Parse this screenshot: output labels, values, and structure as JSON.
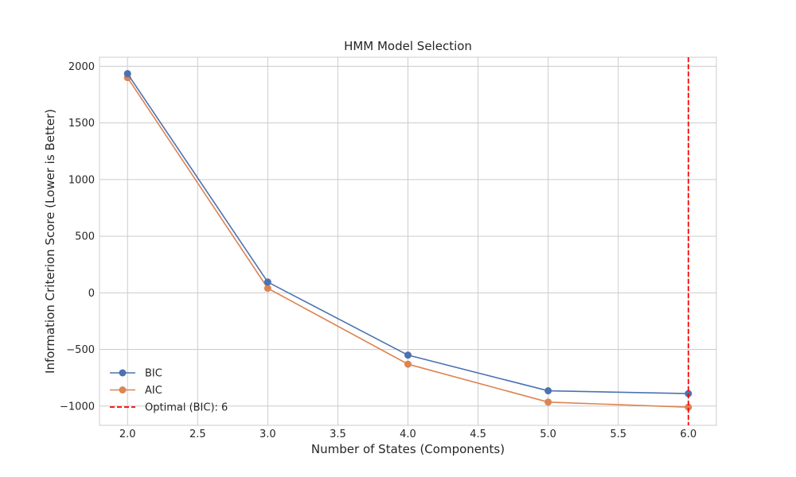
{
  "chart_data": {
    "type": "line",
    "title": "HMM Model Selection",
    "xlabel": "Number of States (Components)",
    "ylabel": "Information Criterion Score (Lower is Better)",
    "xlim": [
      1.8,
      6.2
    ],
    "ylim": [
      -1170,
      2080
    ],
    "x_ticks": [
      2.0,
      2.5,
      3.0,
      3.5,
      4.0,
      4.5,
      5.0,
      5.5,
      6.0
    ],
    "x_tick_labels": [
      "2.0",
      "2.5",
      "3.0",
      "3.5",
      "4.0",
      "4.5",
      "5.0",
      "5.5",
      "6.0"
    ],
    "y_ticks": [
      2000,
      1500,
      1000,
      500,
      0,
      -500,
      -1000
    ],
    "y_tick_labels": [
      "2000",
      "1500",
      "1000",
      "500",
      "0",
      "−500",
      "−1000"
    ],
    "grid": true,
    "legend_position": "lower-left",
    "x": [
      2,
      3,
      4,
      5,
      6
    ],
    "series": [
      {
        "name": "BIC",
        "values": [
          1935,
          95,
          -550,
          -865,
          -890
        ],
        "color": "#4c72b0",
        "marker": "circle"
      },
      {
        "name": "AIC",
        "values": [
          1900,
          40,
          -630,
          -965,
          -1010
        ],
        "color": "#dd8452",
        "marker": "circle"
      }
    ],
    "vline": {
      "x": 6,
      "label": "Optimal (BIC): 6",
      "color": "#ff0000",
      "style": "dashed"
    }
  }
}
